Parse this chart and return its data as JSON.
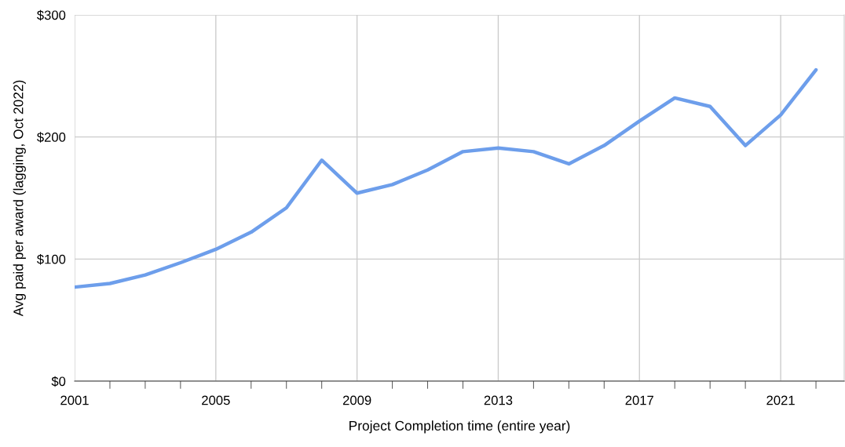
{
  "chart_data": {
    "type": "line",
    "xlabel": "Project Completion time (entire year)",
    "ylabel": "Avg paid per award (lagging, Oct 2022)",
    "x": [
      2001,
      2002,
      2003,
      2004,
      2005,
      2006,
      2007,
      2008,
      2009,
      2010,
      2011,
      2012,
      2013,
      2014,
      2015,
      2016,
      2017,
      2018,
      2019,
      2020,
      2021,
      2022
    ],
    "series": [
      {
        "color": "#6d9eeb",
        "values": [
          77,
          80,
          87,
          97,
          108,
          122,
          142,
          181,
          154,
          161,
          173,
          188,
          191,
          188,
          178,
          193,
          213,
          232,
          225,
          193,
          218,
          255
        ]
      }
    ],
    "xlim": [
      2001,
      2022.8
    ],
    "xticks": [
      2001,
      {
        "value": 2002,
        "label": null
      },
      {
        "value": 2003,
        "label": null
      },
      {
        "value": 2004,
        "label": null
      },
      2005,
      {
        "value": 2006,
        "label": null
      },
      {
        "value": 2007,
        "label": null
      },
      {
        "value": 2008,
        "label": null
      },
      2009,
      {
        "value": 2010,
        "label": null
      },
      {
        "value": 2011,
        "label": null
      },
      {
        "value": 2012,
        "label": null
      },
      2013,
      {
        "value": 2014,
        "label": null
      },
      {
        "value": 2015,
        "label": null
      },
      {
        "value": 2016,
        "label": null
      },
      2017,
      {
        "value": 2018,
        "label": null
      },
      {
        "value": 2019,
        "label": null
      },
      {
        "value": 2020,
        "label": null
      },
      2021,
      {
        "value": 2022,
        "label": null
      }
    ],
    "ylim": [
      0,
      300
    ],
    "yticks": [
      {
        "value": 0,
        "label": "$0"
      },
      {
        "value": 100,
        "label": "$100"
      },
      {
        "value": 200,
        "label": "$200"
      },
      {
        "value": 300,
        "label": "$300"
      }
    ],
    "grid": true,
    "marker": "none",
    "line_style": "solid"
  }
}
